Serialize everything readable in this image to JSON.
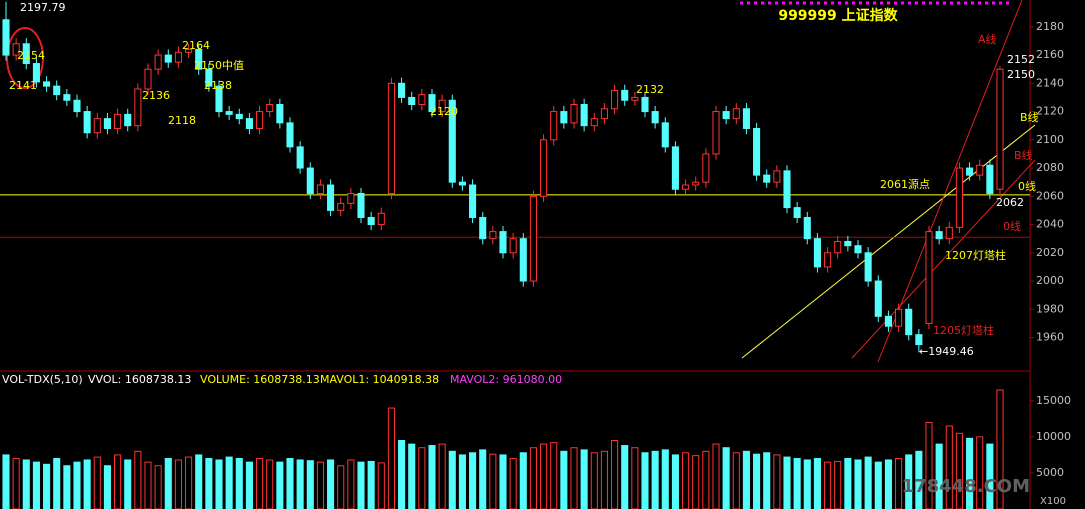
{
  "chart_data": {
    "type": "candlestick",
    "title": "999999 上证指数",
    "open": [
      2185,
      2160,
      2168,
      2154,
      2141,
      2138,
      2132,
      2128,
      2120,
      2105,
      2115,
      2108,
      2118,
      2110,
      2136,
      2150,
      2160,
      2155,
      2162,
      2164,
      2150,
      2138,
      2120,
      2118,
      2115,
      2108,
      2120,
      2125,
      2112,
      2095,
      2080,
      2062,
      2068,
      2050,
      2055,
      2062,
      2045,
      2040,
      2062,
      2140,
      2130,
      2125,
      2132,
      2120,
      2128,
      2070,
      2068,
      2045,
      2030,
      2035,
      2020,
      2030,
      2000,
      2060,
      2100,
      2120,
      2112,
      2125,
      2110,
      2115,
      2122,
      2135,
      2128,
      2130,
      2120,
      2112,
      2095,
      2065,
      2068,
      2070,
      2090,
      2120,
      2115,
      2122,
      2108,
      2075,
      2070,
      2078,
      2052,
      2045,
      2030,
      2010,
      2020,
      2028,
      2025,
      2020,
      2000,
      1975,
      1968,
      1980,
      1962,
      1970,
      2035,
      2030,
      2038,
      2080,
      2075,
      2082,
      2065
    ],
    "high": [
      2197.79,
      2172,
      2172,
      2158,
      2145,
      2142,
      2136,
      2132,
      2124,
      2119,
      2119,
      2122,
      2122,
      2140,
      2154,
      2164,
      2164,
      2166,
      2168,
      2168,
      2154,
      2142,
      2124,
      2122,
      2119,
      2124,
      2129,
      2129,
      2116,
      2099,
      2084,
      2072,
      2072,
      2059,
      2066,
      2066,
      2049,
      2052,
      2144,
      2144,
      2134,
      2136,
      2136,
      2132,
      2132,
      2074,
      2072,
      2049,
      2039,
      2039,
      2034,
      2034,
      2064,
      2104,
      2124,
      2124,
      2129,
      2129,
      2119,
      2126,
      2139,
      2139,
      2134,
      2134,
      2124,
      2116,
      2099,
      2072,
      2074,
      2094,
      2124,
      2124,
      2126,
      2126,
      2112,
      2079,
      2082,
      2082,
      2056,
      2049,
      2034,
      2024,
      2032,
      2032,
      2029,
      2024,
      2004,
      1979,
      1984,
      1984,
      1966,
      2039,
      2039,
      2042,
      2084,
      2084,
      2086,
      2086,
      2152
    ],
    "low": [
      2156,
      2156,
      2150,
      2137,
      2134,
      2128,
      2124,
      2116,
      2101,
      2101,
      2104,
      2104,
      2106,
      2106,
      2132,
      2146,
      2151,
      2151,
      2158,
      2146,
      2134,
      2116,
      2114,
      2111,
      2104,
      2104,
      2116,
      2108,
      2091,
      2076,
      2058,
      2058,
      2046,
      2046,
      2051,
      2041,
      2036,
      2036,
      2058,
      2126,
      2121,
      2121,
      2116,
      2116,
      2066,
      2064,
      2041,
      2026,
      2026,
      2016,
      2016,
      1996,
      1996,
      2056,
      2096,
      2108,
      2108,
      2106,
      2106,
      2111,
      2118,
      2124,
      2124,
      2116,
      2108,
      2091,
      2061,
      2061,
      2064,
      2066,
      2086,
      2111,
      2111,
      2104,
      2071,
      2066,
      2066,
      2048,
      2041,
      2026,
      2006,
      2006,
      2016,
      2021,
      2016,
      1996,
      1971,
      1964,
      1964,
      1958,
      1949.46,
      1966,
      2026,
      2026,
      2034,
      2071,
      2071,
      2058,
      2061
    ],
    "close": [
      2160,
      2168,
      2154,
      2141,
      2138,
      2132,
      2128,
      2120,
      2105,
      2115,
      2108,
      2118,
      2110,
      2136,
      2150,
      2160,
      2155,
      2162,
      2164,
      2150,
      2138,
      2120,
      2118,
      2115,
      2108,
      2120,
      2125,
      2112,
      2095,
      2080,
      2062,
      2068,
      2050,
      2055,
      2062,
      2045,
      2040,
      2048,
      2140,
      2130,
      2125,
      2132,
      2120,
      2128,
      2070,
      2068,
      2045,
      2030,
      2035,
      2020,
      2030,
      2000,
      2060,
      2100,
      2120,
      2112,
      2125,
      2110,
      2115,
      2122,
      2135,
      2128,
      2130,
      2120,
      2112,
      2095,
      2065,
      2068,
      2070,
      2090,
      2120,
      2115,
      2122,
      2108,
      2075,
      2070,
      2078,
      2052,
      2045,
      2030,
      2010,
      2020,
      2028,
      2025,
      2020,
      2000,
      1975,
      1968,
      1980,
      1962,
      1955,
      2035,
      2030,
      2038,
      2080,
      2075,
      2082,
      2062,
      2150
    ],
    "volume": [
      7500,
      7000,
      6800,
      6500,
      6200,
      7000,
      6000,
      6500,
      6800,
      7200,
      6000,
      7500,
      6800,
      8000,
      6500,
      6000,
      7000,
      6800,
      7200,
      7500,
      7000,
      6800,
      7200,
      7000,
      6500,
      7000,
      6800,
      6500,
      7000,
      6800,
      6700,
      6500,
      6800,
      6000,
      6800,
      6500,
      6600,
      6400,
      14000,
      9500,
      9000,
      8500,
      8800,
      9000,
      8000,
      7500,
      7800,
      8200,
      7600,
      7500,
      7000,
      7800,
      8500,
      9000,
      9200,
      8000,
      8500,
      8200,
      7800,
      8000,
      9500,
      8800,
      8500,
      7800,
      8000,
      8200,
      7500,
      7800,
      7400,
      8000,
      9000,
      8500,
      7800,
      8000,
      7600,
      7800,
      7500,
      7200,
      7000,
      6800,
      7000,
      6500,
      6600,
      7000,
      6800,
      7200,
      6500,
      6800,
      7000,
      7500,
      8000,
      12000,
      9000,
      11500,
      10500,
      9800,
      10000,
      9000,
      16500
    ],
    "up_color": "#ff3232",
    "down_color": "#54fcfc",
    "ylim": [
      1937,
      2199
    ],
    "yticks": [
      1960,
      1980,
      2000,
      2020,
      2040,
      2060,
      2080,
      2100,
      2120,
      2140,
      2160,
      2180
    ],
    "volume_ylim": [
      0,
      19000
    ],
    "volume_yticks": [
      5000,
      10000,
      15000
    ],
    "reference_lines": [
      {
        "value": 2061,
        "color": "#ffff00"
      },
      {
        "value": 2031,
        "color": "#c00000"
      }
    ],
    "annotations": [
      "2197.79",
      "2154",
      "2141",
      "2164",
      "2150中值",
      "2136",
      "2138",
      "2118",
      "2120",
      "2132",
      "2152",
      "2150",
      "2062",
      "2061源点",
      "0线",
      "0线",
      "A线",
      "B线",
      "B线",
      "1207灯塔柱",
      "1205灯塔柱",
      "←1949.46"
    ],
    "indicator": [
      "VOL-TDX(5,10)",
      "VVOL: 1608738.13",
      "VOLUME: 1608738.13",
      "MAVOL1: 1040918.38",
      "MAVOL2: 961080.00"
    ],
    "watermark": "178448.COM",
    "scale_note": "X100"
  }
}
